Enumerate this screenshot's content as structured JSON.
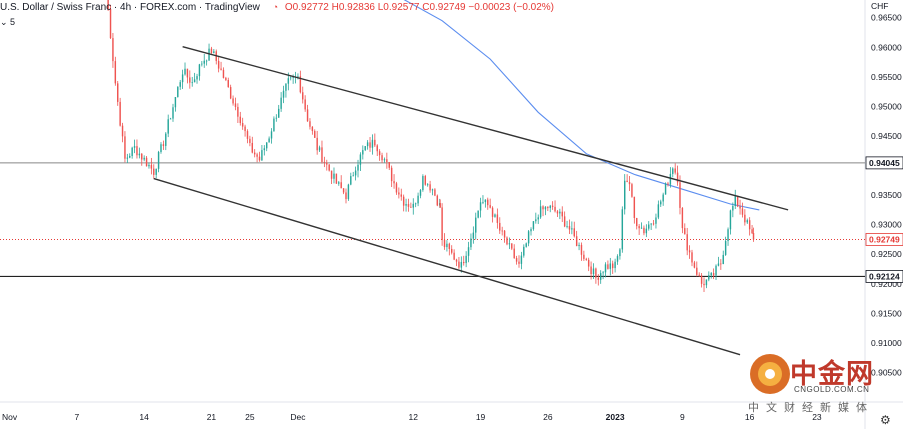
{
  "header": {
    "symbol": "U.S. Dollar / Swiss Franc · 4h · FOREX.com · TradingView",
    "ohlc": "O0.92772 H0.92836 L0.92577 C0.92749 −0.00023 (−0.02%)",
    "bell_icon": "alert-icon",
    "indicator_count": "5",
    "currency": "CHF"
  },
  "colors": {
    "up": "#26a69a",
    "down": "#ef5350",
    "ma": "#5b8def",
    "channel": "#333333",
    "current_price": "#e53935"
  },
  "watermark": {
    "brand": "中金网",
    "url": "CNGOLD.COM.CN",
    "tagline": "中文财经新媒体"
  },
  "chart_data": {
    "type": "candlestick",
    "title": "U.S. Dollar / Swiss Franc · 4h · FOREX.com",
    "ylim": [
      0.9,
      0.968
    ],
    "y_ticks": [
      0.905,
      0.91,
      0.915,
      0.92,
      0.925,
      0.93,
      0.935,
      0.94,
      0.945,
      0.95,
      0.955,
      0.96,
      0.965
    ],
    "y_tick_labels": [
      "0.90500",
      "0.91000",
      "0.91500",
      "0.92000",
      "0.92500",
      "0.93000",
      "0.93500",
      "0.94000",
      "0.94500",
      "0.95000",
      "0.95500",
      "0.96000",
      "0.96500"
    ],
    "x_ticks": [
      {
        "label": "Nov",
        "day": 0
      },
      {
        "label": "7",
        "day": 7
      },
      {
        "label": "14",
        "day": 14
      },
      {
        "label": "21",
        "day": 21
      },
      {
        "label": "25",
        "day": 25
      },
      {
        "label": "Dec",
        "day": 30
      },
      {
        "label": "12",
        "day": 42
      },
      {
        "label": "19",
        "day": 49
      },
      {
        "label": "26",
        "day": 56
      },
      {
        "label": "2023",
        "day": 63
      },
      {
        "label": "9",
        "day": 70
      },
      {
        "label": "16",
        "day": 77
      },
      {
        "label": "23",
        "day": 84
      }
    ],
    "x_domain_days": [
      -1,
      89
    ],
    "price_labels": [
      {
        "value": 0.94045,
        "text": "0.94045",
        "style": "horizontal-line"
      },
      {
        "value": 0.92749,
        "text": "0.92749",
        "style": "current-price"
      },
      {
        "value": 0.92124,
        "text": "0.92124",
        "style": "horizontal-line-dark"
      }
    ],
    "trend_channel": [
      {
        "name": "upper",
        "points": [
          [
            18,
            0.9601
          ],
          [
            81,
            0.9325
          ]
        ]
      },
      {
        "name": "lower",
        "points": [
          [
            15,
            0.9378
          ],
          [
            76,
            0.908
          ]
        ]
      }
    ],
    "moving_average": {
      "points": [
        [
          40,
          0.969
        ],
        [
          45,
          0.9645
        ],
        [
          50,
          0.958
        ],
        [
          55,
          0.949
        ],
        [
          60,
          0.942
        ],
        [
          65,
          0.9385
        ],
        [
          70,
          0.936
        ],
        [
          75,
          0.9335
        ],
        [
          78,
          0.9325
        ]
      ]
    },
    "anchors": [
      [
        10,
        0.9705
      ],
      [
        11,
        0.954
      ],
      [
        12,
        0.941
      ],
      [
        13,
        0.943
      ],
      [
        15,
        0.939
      ],
      [
        16,
        0.944
      ],
      [
        18,
        0.956
      ],
      [
        19,
        0.954
      ],
      [
        20,
        0.9575
      ],
      [
        21,
        0.9595
      ],
      [
        22,
        0.956
      ],
      [
        23,
        0.952
      ],
      [
        24,
        0.948
      ],
      [
        25,
        0.943
      ],
      [
        26,
        0.941
      ],
      [
        27,
        0.945
      ],
      [
        28,
        0.95
      ],
      [
        29,
        0.954
      ],
      [
        30,
        0.955
      ],
      [
        31,
        0.948
      ],
      [
        32,
        0.943
      ],
      [
        33,
        0.94
      ],
      [
        34,
        0.937
      ],
      [
        35,
        0.935
      ],
      [
        36,
        0.94
      ],
      [
        37,
        0.943
      ],
      [
        38,
        0.944
      ],
      [
        39,
        0.941
      ],
      [
        40,
        0.937
      ],
      [
        41,
        0.934
      ],
      [
        42,
        0.933
      ],
      [
        43,
        0.938
      ],
      [
        44,
        0.936
      ],
      [
        44.8,
        0.933
      ],
      [
        45,
        0.927
      ],
      [
        46,
        0.925
      ],
      [
        47,
        0.923
      ],
      [
        48,
        0.928
      ],
      [
        49,
        0.934
      ],
      [
        50,
        0.933
      ],
      [
        51,
        0.929
      ],
      [
        52,
        0.926
      ],
      [
        53,
        0.923
      ],
      [
        54,
        0.928
      ],
      [
        55,
        0.932
      ],
      [
        56,
        0.933
      ],
      [
        57,
        0.932
      ],
      [
        58,
        0.93
      ],
      [
        59,
        0.927
      ],
      [
        60,
        0.924
      ],
      [
        61,
        0.921
      ],
      [
        62,
        0.923
      ],
      [
        63,
        0.923
      ],
      [
        63.5,
        0.926
      ],
      [
        64,
        0.938
      ],
      [
        64.5,
        0.937
      ],
      [
        65,
        0.931
      ],
      [
        66,
        0.929
      ],
      [
        67,
        0.931
      ],
      [
        68,
        0.935
      ],
      [
        69,
        0.94
      ],
      [
        69.5,
        0.938
      ],
      [
        70,
        0.929
      ],
      [
        71,
        0.924
      ],
      [
        72,
        0.92
      ],
      [
        73,
        0.921
      ],
      [
        74,
        0.9235
      ],
      [
        75,
        0.932
      ],
      [
        75.5,
        0.934
      ],
      [
        76,
        0.933
      ],
      [
        77,
        0.929
      ],
      [
        77.4,
        0.9275
      ]
    ]
  }
}
